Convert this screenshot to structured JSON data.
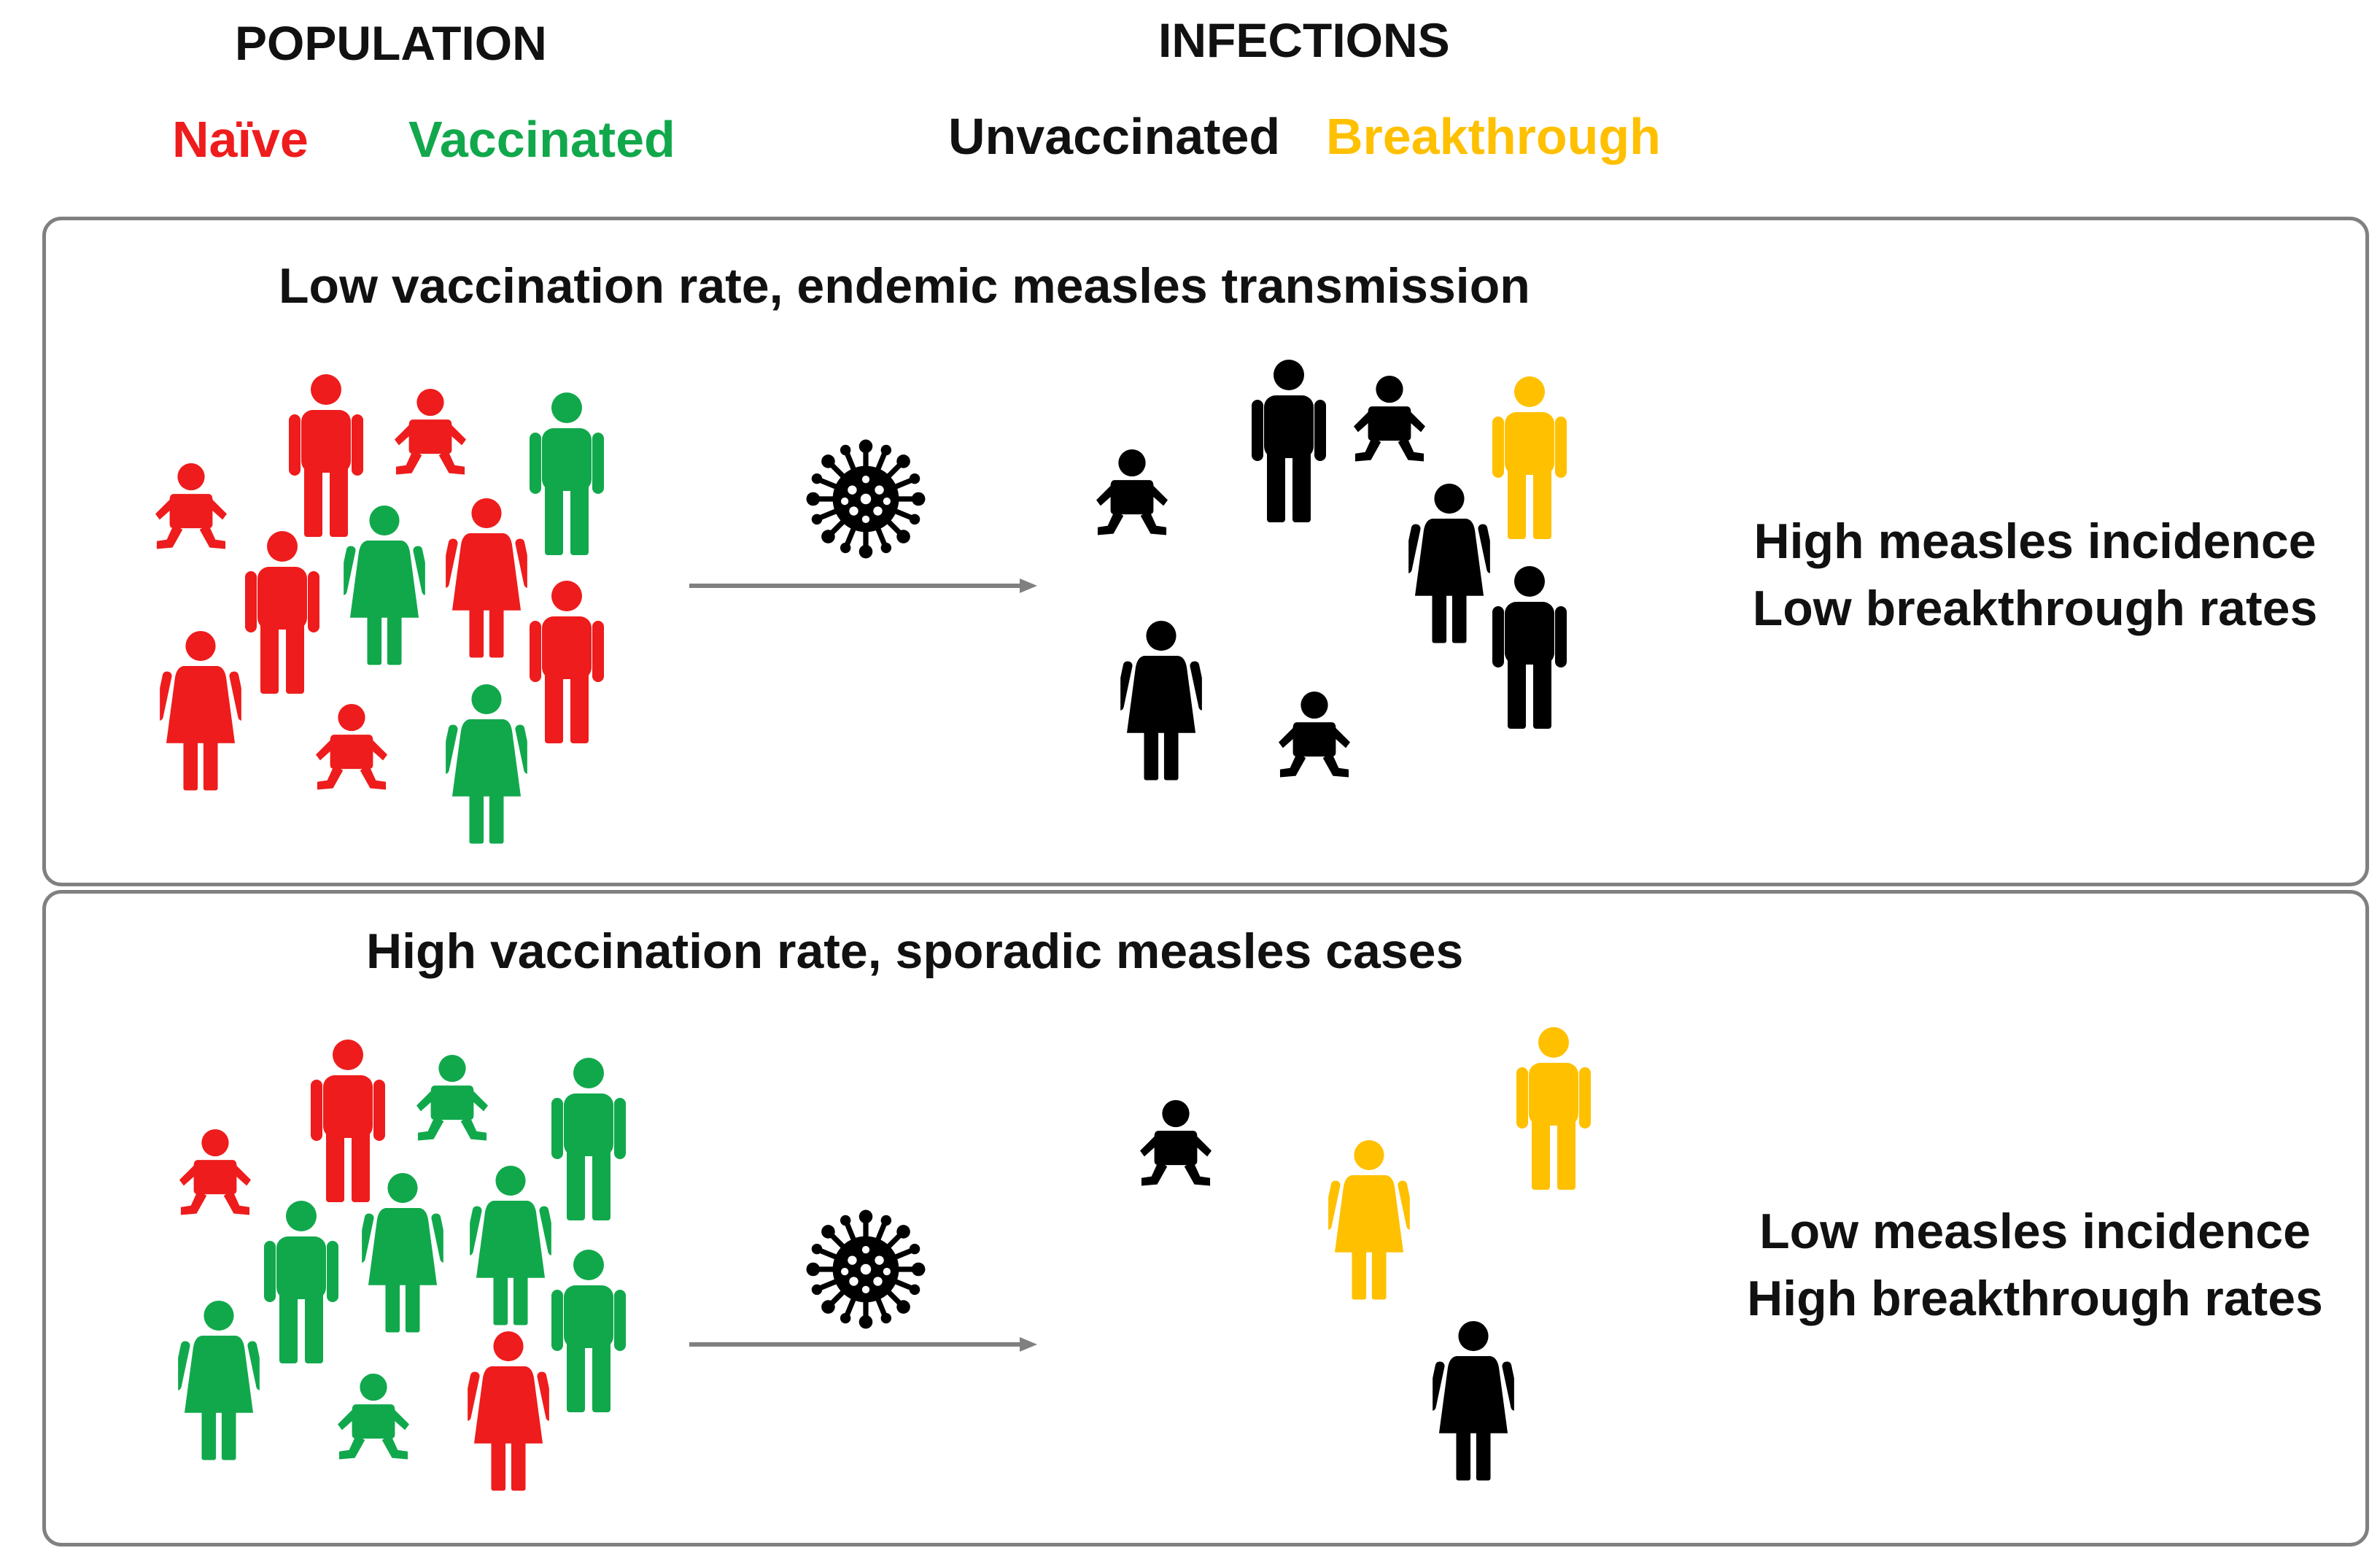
{
  "header": {
    "population": "POPULATION",
    "infections": "INFECTIONS"
  },
  "legend": {
    "naive": "Naïve",
    "vaccinated": "Vaccinated",
    "unvaccinated": "Unvaccinated",
    "breakthrough": "Breakthrough"
  },
  "colors": {
    "naive": "#ee1c1c",
    "vaccinated": "#11a84c",
    "unvaccinated": "#000000",
    "breakthrough": "#ffc000",
    "arrow": "#808080",
    "border": "#808080"
  },
  "panels": [
    {
      "title": "Low vaccination rate, endemic measles transmission",
      "outcome_line1": "High measles incidence",
      "outcome_line2": "Low breakthrough rates",
      "icon": "virus-icon"
    },
    {
      "title": "High vaccination rate, sporadic measles cases",
      "outcome_line1": "Low measles incidence",
      "outcome_line2": "High breakthrough rates",
      "icon": "virus-icon"
    }
  ]
}
